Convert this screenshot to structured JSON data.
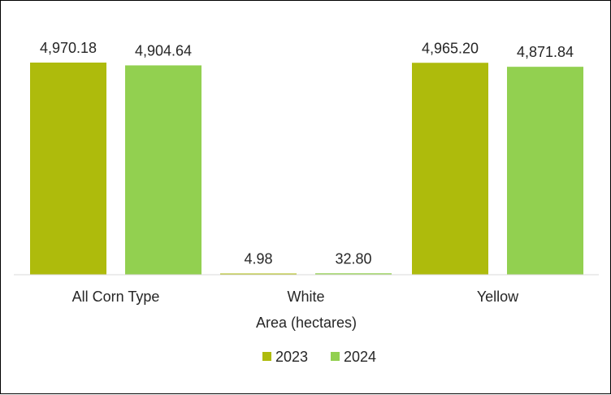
{
  "chart_data": {
    "type": "bar",
    "title": "",
    "xlabel": "Area (hectares)",
    "ylabel": "",
    "categories": [
      "All Corn Type",
      "White",
      "Yellow"
    ],
    "series": [
      {
        "name": "2023",
        "color": "#AEBB0C",
        "values": [
          4970.18,
          4.98,
          4965.2
        ],
        "labels": [
          "4,970.18",
          "4.98",
          "4,965.20"
        ]
      },
      {
        "name": "2024",
        "color": "#92D050",
        "values": [
          4904.64,
          32.8,
          4871.84
        ],
        "labels": [
          "4,904.64",
          "32.80",
          "4,871.84"
        ]
      }
    ],
    "ylim": [
      0,
      5000
    ],
    "grid": false,
    "legend": "bottom-center"
  }
}
